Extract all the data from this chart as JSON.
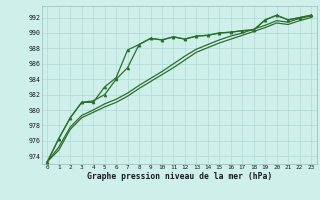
{
  "title": "Graphe pression niveau de la mer (hPa)",
  "background_color": "#cff0ea",
  "grid_color": "#aaddd6",
  "line_color": "#2d6e2d",
  "xlim": [
    -0.5,
    23.5
  ],
  "ylim": [
    973.0,
    993.5
  ],
  "yticks": [
    974,
    976,
    978,
    980,
    982,
    984,
    986,
    988,
    990,
    992
  ],
  "xticks": [
    0,
    1,
    2,
    3,
    4,
    5,
    6,
    7,
    8,
    9,
    10,
    11,
    12,
    13,
    14,
    15,
    16,
    17,
    18,
    19,
    20,
    21,
    22,
    23
  ],
  "series": {
    "line1_y": [
      973.3,
      976.3,
      979.0,
      981.0,
      981.0,
      983.0,
      984.2,
      987.8,
      988.5,
      989.3,
      989.1,
      989.5,
      989.2,
      989.6,
      989.7,
      990.0,
      990.1,
      990.3,
      990.4,
      991.7,
      992.3,
      991.7,
      992.0,
      992.3
    ],
    "line2_y": [
      973.3,
      976.3,
      979.0,
      981.0,
      981.2,
      982.0,
      984.0,
      985.5,
      988.5,
      989.3,
      989.1,
      989.5,
      989.2,
      989.6,
      989.7,
      990.0,
      990.1,
      990.3,
      990.4,
      991.7,
      992.3,
      991.7,
      992.0,
      992.3
    ],
    "line3_y": [
      973.3,
      975.2,
      977.8,
      979.3,
      980.0,
      980.8,
      981.4,
      982.2,
      983.2,
      984.1,
      985.0,
      986.0,
      987.0,
      987.9,
      988.5,
      989.1,
      989.6,
      990.0,
      990.5,
      991.0,
      991.6,
      991.4,
      991.9,
      992.2
    ],
    "line4_y": [
      973.3,
      974.8,
      977.5,
      979.0,
      979.7,
      980.4,
      981.0,
      981.8,
      982.8,
      983.7,
      984.6,
      985.5,
      986.5,
      987.5,
      988.1,
      988.7,
      989.2,
      989.7,
      990.2,
      990.7,
      991.3,
      991.1,
      991.6,
      992.0
    ]
  }
}
